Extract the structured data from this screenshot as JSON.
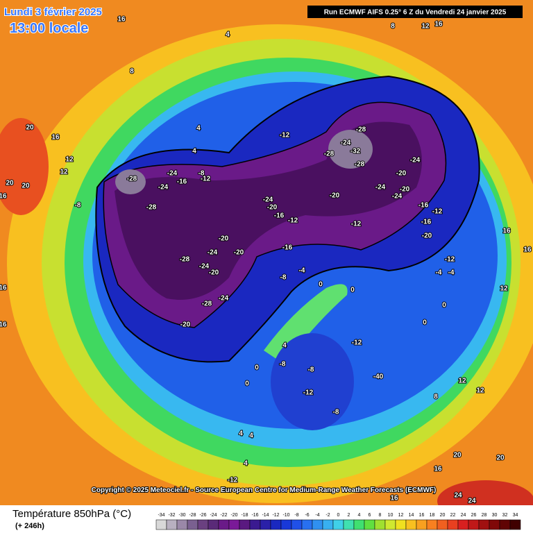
{
  "header": {
    "date": "Lundi 3 février 2025",
    "time": "13:00 locale",
    "run": "Run ECMWF AIFS 0.25° 6 Z du Vendredi 24 janvier 2025"
  },
  "copyright": "Copyright © 2025 Meteociel.fr - Source European Centre for Medium-Range Weather Forecasts (ECMWF)",
  "legend": {
    "title": "Température 850hPa (°C)",
    "subtitle": "(+ 246h)",
    "ticks": [
      -34,
      -32,
      -30,
      -28,
      -26,
      -24,
      -22,
      -20,
      -18,
      -16,
      -14,
      -12,
      -10,
      -8,
      -6,
      -4,
      -2,
      0,
      2,
      4,
      6,
      8,
      10,
      12,
      14,
      16,
      18,
      20,
      22,
      24,
      26,
      28,
      30,
      32,
      34
    ],
    "colors": [
      "#d8d8d8",
      "#b8b0c0",
      "#9a88a8",
      "#7a6090",
      "#6a4080",
      "#5a2a78",
      "#6a1a88",
      "#7a1a98",
      "#5a1a80",
      "#3a1a90",
      "#2a20a8",
      "#1a28c0",
      "#1838d8",
      "#2050e8",
      "#2870f0",
      "#3090f0",
      "#38b0f0",
      "#40d0e8",
      "#40e0b0",
      "#40e070",
      "#60e040",
      "#a0e030",
      "#d0e830",
      "#f0e020",
      "#f8c020",
      "#f8a020",
      "#f88020",
      "#f06020",
      "#e84020",
      "#d82020",
      "#c01818",
      "#a01010",
      "#800808",
      "#600404",
      "#400000"
    ]
  },
  "map": {
    "contour_labels": [
      "16",
      "4",
      "8",
      "20",
      "16",
      "12",
      "12",
      "20",
      "20",
      "16",
      "-8",
      "-12",
      "-28",
      "-24",
      "-32",
      "-28",
      "-28",
      "-24",
      "-20",
      "-24",
      "-20",
      "-24",
      "-16",
      "-12",
      "-20",
      "-24",
      "-8",
      "-16",
      "-12",
      "-24",
      "-28",
      "-28",
      "-24",
      "-20",
      "-16",
      "-12",
      "-12",
      "-20",
      "-24",
      "-20",
      "-16",
      "-28",
      "-24",
      "-20",
      "-8",
      "-4",
      "0",
      "0",
      "-24",
      "-28",
      "-20",
      "4",
      "-12",
      "-8",
      "-8",
      "-12",
      "-8",
      "-40",
      "0",
      "0",
      "0",
      "0",
      "-12",
      "-16",
      "-20",
      "-12",
      "-4",
      "-4",
      "16",
      "16",
      "12",
      "12",
      "12",
      "8",
      "20",
      "20",
      "16",
      "16",
      "24",
      "24",
      "4",
      "4",
      "4",
      "-12",
      "4",
      "4",
      "8",
      "12",
      "16",
      "16",
      "16"
    ]
  }
}
